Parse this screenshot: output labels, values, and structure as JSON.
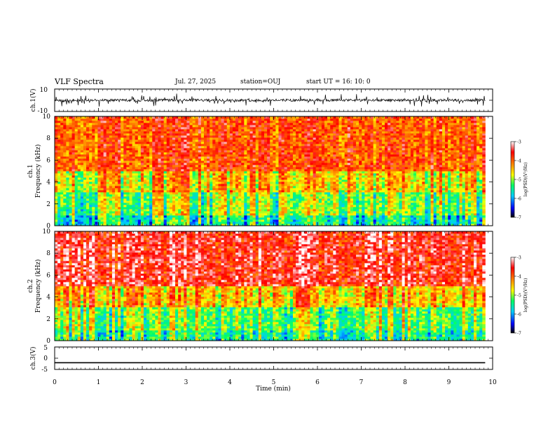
{
  "header": {
    "title": "VLF Spectra",
    "date": "Jul. 27, 2025",
    "station": "station=OUJ",
    "start_ut": "start UT =  16: 10: 0"
  },
  "chart_data": [
    {
      "type": "line",
      "panel": "ch1-waveform",
      "ylabel": "ch.1(V)",
      "ylim": [
        -10,
        10
      ],
      "yticks": [
        "10",
        "-10"
      ],
      "xlim": [
        0,
        10
      ],
      "x_extent_min": 9.83,
      "description_values": {
        "baseline": 0,
        "spike_range": [
          -4,
          4
        ]
      }
    },
    {
      "type": "heatmap",
      "panel": "ch1-spectrogram",
      "ylabel": "Frequency (kHz)",
      "ylabel_channel": "ch.1",
      "ylim": [
        0,
        10
      ],
      "yticks": [
        "0",
        "2",
        "4",
        "6",
        "8",
        "10"
      ],
      "xlim": [
        0,
        10
      ],
      "x_extent_min": 9.83,
      "colorbar": {
        "label": "log(PSD)(V²/Hz)",
        "range": [
          -7,
          -3
        ],
        "ticks": [
          "-3",
          "-4",
          "-5",
          "-6",
          "-7"
        ]
      },
      "profile_log_psd": {
        "0-1kHz": -5.5,
        "1-3kHz": -5.0,
        "3-5kHz": -4.5,
        "5-10kHz": -3.9
      }
    },
    {
      "type": "heatmap",
      "panel": "ch2-spectrogram",
      "ylabel": "Frequency (kHz)",
      "ylabel_channel": "ch.2",
      "ylim": [
        0,
        10
      ],
      "yticks": [
        "0",
        "2",
        "4",
        "6",
        "8",
        "10"
      ],
      "xlim": [
        0,
        10
      ],
      "x_extent_min": 9.83,
      "colorbar": {
        "label": "log(PSD)(V²/Hz)",
        "range": [
          -7,
          -3
        ],
        "ticks": [
          "-3",
          "-4",
          "-5",
          "-6",
          "-7"
        ]
      },
      "profile_log_psd": {
        "0-1kHz": -5.3,
        "1-3kHz": -5.0,
        "3-5kHz": -4.3,
        "5-10kHz": -3.5
      }
    },
    {
      "type": "line",
      "panel": "ch3-waveform",
      "ylabel": "ch.3(V)",
      "ylim": [
        -5,
        5
      ],
      "yticks": [
        "5",
        "0",
        "-5"
      ],
      "xlim": [
        0,
        10
      ],
      "x": [
        0,
        9.83
      ],
      "y": [
        -2.0,
        -2.0
      ],
      "xticks": [
        "0",
        "1",
        "2",
        "3",
        "4",
        "5",
        "6",
        "7",
        "8",
        "9",
        "10"
      ],
      "xlabel": "Time (min)"
    }
  ],
  "colors": {
    "line": "#000000",
    "colormap": [
      "#000000",
      "#0000ff",
      "#00ccff",
      "#00ff66",
      "#ffff00",
      "#ff8800",
      "#ff0000",
      "#ffffff"
    ]
  }
}
